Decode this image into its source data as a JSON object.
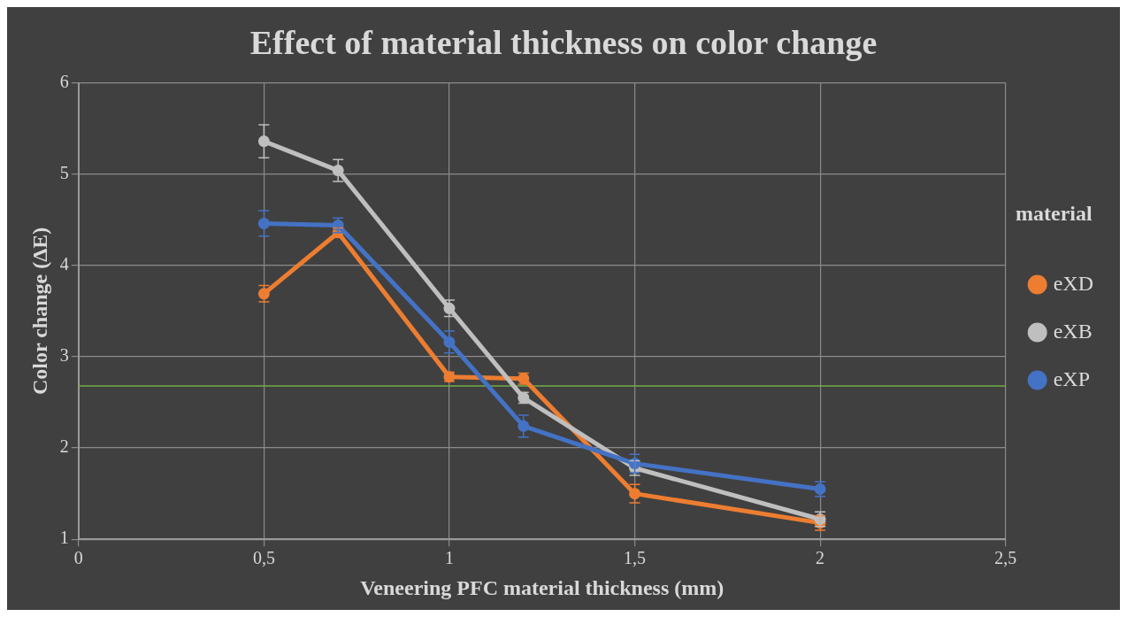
{
  "chart_data": {
    "type": "line",
    "title": "Effect of material thickness on color change",
    "xlabel": "Veneering PFC material thickness (mm)",
    "ylabel": "Color change (ΔE)",
    "legend_title": "material",
    "x": [
      0.5,
      0.7,
      1,
      1.2,
      1.5,
      2
    ],
    "series": [
      {
        "name": "eXD",
        "color": "#ed7d31",
        "values": [
          3.69,
          4.36,
          2.78,
          2.76,
          1.5,
          1.18
        ],
        "errors": [
          0.09,
          0.05,
          0.05,
          0.06,
          0.1,
          0.08
        ]
      },
      {
        "name": "eXB",
        "color": "#bfbfbf",
        "values": [
          5.36,
          5.04,
          3.53,
          2.55,
          1.78,
          1.22
        ],
        "errors": [
          0.18,
          0.12,
          0.09,
          0.06,
          0.08,
          0.08
        ]
      },
      {
        "name": "eXP",
        "color": "#4472c4",
        "values": [
          4.46,
          4.44,
          3.16,
          2.24,
          1.83,
          1.55
        ],
        "errors": [
          0.14,
          0.08,
          0.12,
          0.12,
          0.1,
          0.08
        ]
      }
    ],
    "xlim": [
      0,
      2.5
    ],
    "xticks": [
      0,
      {
        "value": 0.5,
        "label": "0,5"
      },
      1,
      {
        "value": 1.5,
        "label": "1,5"
      },
      2,
      {
        "value": 2.5,
        "label": "2,5"
      }
    ],
    "ylim": [
      1,
      6
    ],
    "yticks": [
      1,
      2,
      3,
      4,
      5,
      6
    ],
    "ref_lines": [
      {
        "axis": "y",
        "value": 2.68,
        "color": "#70ad47"
      }
    ],
    "grid": true,
    "legend": "right",
    "marker": "circle",
    "line_style": "solid"
  }
}
